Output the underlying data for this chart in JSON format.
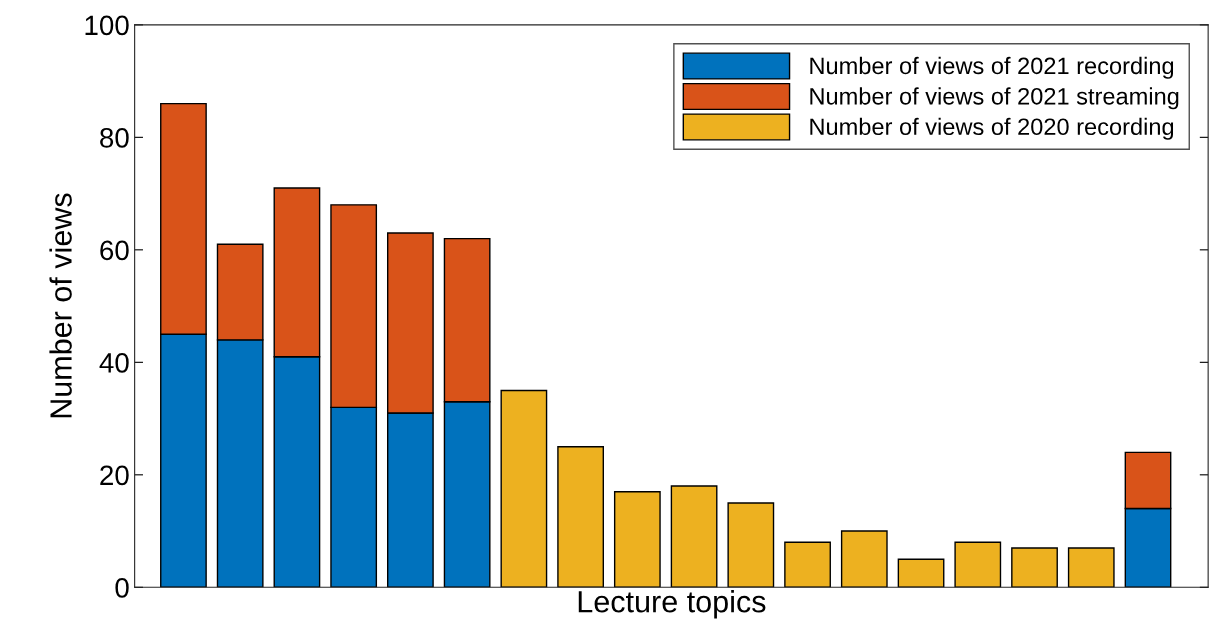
{
  "chart_data": {
    "type": "bar",
    "stacked": true,
    "xlabel": "Lecture topics",
    "ylabel": "Number of views",
    "categories": [
      null,
      null,
      null,
      null,
      null,
      null,
      null,
      null,
      null,
      null,
      null,
      null,
      null,
      null,
      null,
      null,
      null,
      null
    ],
    "series": [
      {
        "name": "Number of views of 2021 recording",
        "color": "#0072bd",
        "values": [
          45,
          44,
          41,
          32,
          31,
          33,
          null,
          null,
          null,
          null,
          null,
          null,
          null,
          null,
          null,
          null,
          null,
          14
        ]
      },
      {
        "name": "Number of views of 2021 streaming",
        "color": "#d95319",
        "values": [
          41,
          17,
          30,
          36,
          32,
          29,
          null,
          null,
          null,
          null,
          null,
          null,
          null,
          null,
          null,
          null,
          null,
          10
        ]
      },
      {
        "name": "Number of views of 2020 recording",
        "color": "#edb120",
        "values": [
          null,
          null,
          null,
          null,
          null,
          null,
          35,
          25,
          17,
          18,
          15,
          8,
          10,
          5,
          8,
          7,
          7,
          null
        ]
      }
    ],
    "ylim": [
      0,
      100
    ],
    "yticks": [
      0,
      20,
      40,
      60,
      80,
      100
    ],
    "tick_labels": "y",
    "legend": "top right",
    "grid": false
  }
}
